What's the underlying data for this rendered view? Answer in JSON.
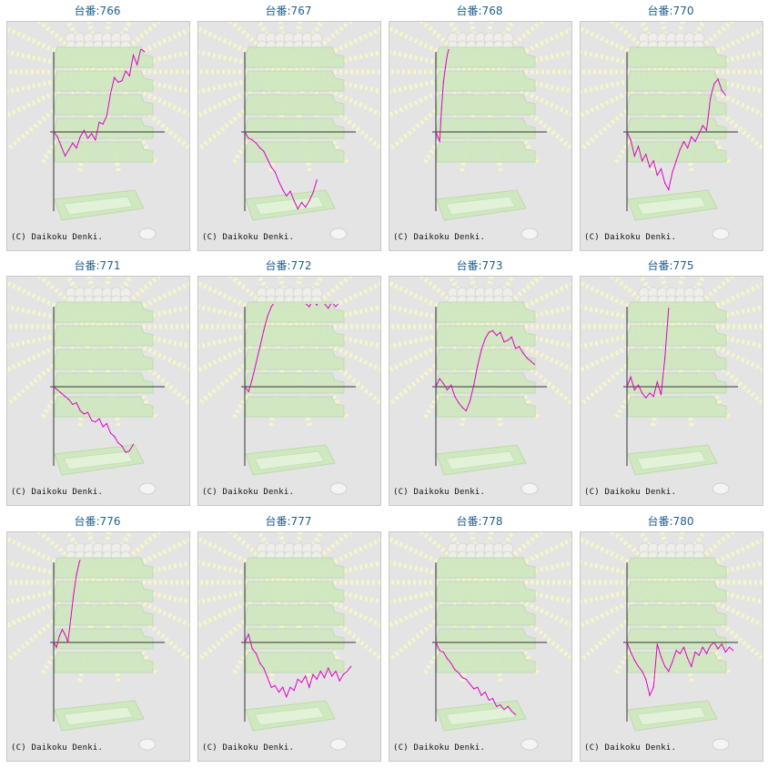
{
  "colors": {
    "line": "#e000c8",
    "title": "#1f5f8f",
    "panel_bg": "#e4e4e4",
    "axis": "#333333",
    "machine": "#cfe8c0",
    "rays": "#f6f6c8"
  },
  "copyright": "(C) Daikoku Denki.",
  "chart_data": [
    {
      "type": "line",
      "title": "台番:766",
      "x": [
        0,
        4,
        8,
        12,
        16,
        20,
        24,
        28,
        32,
        36,
        40,
        44,
        48,
        52,
        56,
        60,
        64,
        68,
        72,
        76,
        80,
        84,
        88,
        92,
        96
      ],
      "values": [
        0,
        -0.06,
        -0.18,
        -0.3,
        -0.22,
        -0.14,
        -0.2,
        -0.06,
        0.02,
        -0.08,
        -0.02,
        -0.1,
        0.12,
        0.1,
        0.2,
        0.48,
        0.68,
        0.62,
        0.64,
        0.76,
        0.7,
        0.96,
        0.84,
        1.04,
        1.0
      ]
    },
    {
      "type": "line",
      "title": "台番:767",
      "x": [
        0,
        4,
        8,
        12,
        16,
        20,
        24,
        28,
        32,
        36,
        40,
        44,
        48,
        52,
        56,
        60,
        64,
        68,
        72,
        76
      ],
      "values": [
        0,
        -0.08,
        -0.1,
        -0.14,
        -0.2,
        -0.24,
        -0.34,
        -0.44,
        -0.5,
        -0.62,
        -0.72,
        -0.8,
        -0.74,
        -0.86,
        -0.96,
        -0.88,
        -0.94,
        -0.86,
        -0.76,
        -0.6
      ]
    },
    {
      "type": "line",
      "title": "台番:768",
      "x": [
        0,
        2,
        4,
        6,
        8,
        10,
        12,
        14,
        16,
        18,
        20,
        22
      ],
      "values": [
        0,
        -0.06,
        -0.12,
        0.3,
        0.62,
        0.8,
        0.96,
        1.05,
        1.1,
        1.15,
        1.2,
        1.25
      ]
    },
    {
      "type": "line",
      "title": "台番:770",
      "x": [
        0,
        4,
        8,
        12,
        16,
        20,
        24,
        28,
        32,
        36,
        40,
        44,
        48,
        52,
        56,
        60,
        64,
        68,
        72,
        76,
        80,
        84,
        88,
        92,
        96,
        100,
        104
      ],
      "values": [
        0,
        -0.1,
        -0.3,
        -0.18,
        -0.36,
        -0.28,
        -0.44,
        -0.36,
        -0.54,
        -0.46,
        -0.64,
        -0.72,
        -0.5,
        -0.36,
        -0.22,
        -0.12,
        -0.2,
        -0.06,
        -0.12,
        -0.02,
        0.08,
        0.02,
        0.42,
        0.6,
        0.66,
        0.52,
        0.46
      ]
    },
    {
      "type": "line",
      "title": "台番:771",
      "x": [
        0,
        4,
        8,
        12,
        16,
        20,
        24,
        28,
        32,
        36,
        40,
        44,
        48,
        52,
        56,
        60,
        64,
        68,
        72,
        76,
        80,
        84
      ],
      "values": [
        0,
        -0.04,
        -0.08,
        -0.12,
        -0.16,
        -0.22,
        -0.2,
        -0.3,
        -0.34,
        -0.32,
        -0.42,
        -0.44,
        -0.4,
        -0.5,
        -0.46,
        -0.58,
        -0.62,
        -0.7,
        -0.74,
        -0.82,
        -0.8,
        -0.72
      ]
    },
    {
      "type": "line",
      "title": "台番:772",
      "x": [
        0,
        4,
        8,
        12,
        16,
        20,
        24,
        28,
        32,
        36,
        40,
        44,
        48,
        52,
        56,
        60,
        64,
        68,
        72,
        76,
        80,
        84,
        88,
        92,
        96,
        100,
        104,
        108
      ],
      "values": [
        0,
        -0.06,
        0.1,
        0.3,
        0.5,
        0.7,
        0.88,
        1.0,
        1.06,
        1.04,
        1.12,
        1.18,
        1.14,
        1.2,
        1.16,
        1.1,
        1.04,
        1.0,
        1.08,
        1.02,
        1.12,
        1.04,
        0.98,
        1.06,
        1.0,
        1.06,
        1.1,
        1.08
      ]
    },
    {
      "type": "line",
      "title": "台番:773",
      "x": [
        0,
        4,
        8,
        12,
        16,
        20,
        24,
        28,
        32,
        36,
        40,
        44,
        48,
        52,
        56,
        60,
        64,
        68,
        72,
        76,
        80,
        84,
        88,
        92,
        96,
        100,
        104
      ],
      "values": [
        0,
        0.1,
        0.04,
        -0.04,
        0.02,
        -0.12,
        -0.2,
        -0.26,
        -0.3,
        -0.18,
        0.02,
        0.26,
        0.46,
        0.6,
        0.68,
        0.7,
        0.64,
        0.68,
        0.56,
        0.58,
        0.62,
        0.48,
        0.5,
        0.42,
        0.36,
        0.32,
        0.28
      ]
    },
    {
      "type": "line",
      "title": "台番:775",
      "x": [
        0,
        4,
        8,
        12,
        16,
        20,
        24,
        28,
        32,
        36,
        40,
        44
      ],
      "values": [
        0,
        0.12,
        -0.04,
        0.02,
        -0.08,
        -0.14,
        -0.08,
        -0.12,
        0.06,
        -0.1,
        0.36,
        0.98
      ]
    },
    {
      "type": "line",
      "title": "台番:776",
      "x": [
        0,
        3,
        6,
        9,
        12,
        15,
        18,
        21,
        24,
        27,
        30
      ],
      "values": [
        0,
        -0.06,
        0.08,
        0.16,
        0.1,
        0.0,
        0.3,
        0.6,
        0.84,
        1.0,
        1.1
      ]
    },
    {
      "type": "line",
      "title": "台番:777",
      "x": [
        0,
        4,
        8,
        12,
        16,
        20,
        24,
        28,
        32,
        36,
        40,
        44,
        48,
        52,
        56,
        60,
        64,
        68,
        72,
        76,
        80,
        84,
        88,
        92,
        96,
        100,
        104,
        108,
        112
      ],
      "values": [
        0,
        0.1,
        -0.08,
        -0.14,
        -0.26,
        -0.32,
        -0.44,
        -0.56,
        -0.54,
        -0.62,
        -0.56,
        -0.68,
        -0.56,
        -0.6,
        -0.46,
        -0.5,
        -0.42,
        -0.56,
        -0.4,
        -0.46,
        -0.36,
        -0.44,
        -0.32,
        -0.42,
        -0.36,
        -0.48,
        -0.4,
        -0.36,
        -0.3
      ]
    },
    {
      "type": "line",
      "title": "台番:778",
      "x": [
        0,
        4,
        8,
        12,
        16,
        20,
        24,
        28,
        32,
        36,
        40,
        44,
        48,
        52,
        56,
        60,
        64,
        68,
        72,
        76,
        80,
        84
      ],
      "values": [
        0,
        -0.1,
        -0.12,
        -0.2,
        -0.26,
        -0.34,
        -0.38,
        -0.44,
        -0.46,
        -0.52,
        -0.58,
        -0.56,
        -0.66,
        -0.62,
        -0.72,
        -0.7,
        -0.8,
        -0.78,
        -0.84,
        -0.8,
        -0.86,
        -0.9
      ]
    },
    {
      "type": "line",
      "title": "台番:780",
      "x": [
        0,
        4,
        8,
        12,
        16,
        20,
        24,
        28,
        32,
        36,
        40,
        44,
        48,
        52,
        56,
        60,
        64,
        68,
        72,
        76,
        80,
        84,
        88,
        92,
        96,
        100,
        104,
        108,
        112
      ],
      "values": [
        0,
        -0.12,
        -0.22,
        -0.3,
        -0.36,
        -0.46,
        -0.66,
        -0.56,
        -0.02,
        -0.18,
        -0.3,
        -0.36,
        -0.24,
        -0.1,
        -0.14,
        -0.06,
        -0.2,
        -0.3,
        -0.12,
        -0.16,
        -0.06,
        -0.14,
        -0.04,
        0.0,
        -0.08,
        -0.02,
        -0.12,
        -0.06,
        -0.1
      ]
    }
  ]
}
